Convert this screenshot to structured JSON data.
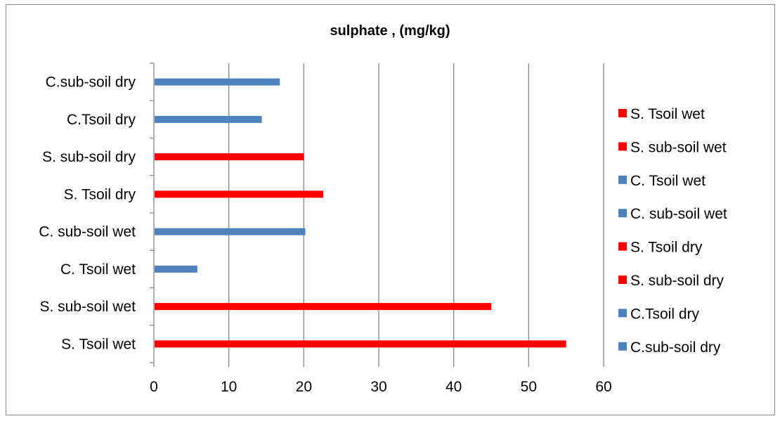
{
  "chart_data": {
    "type": "bar",
    "orientation": "horizontal",
    "title": "sulphate , (mg/kg)",
    "xlabel": "",
    "ylabel": "",
    "xlim": [
      0,
      60
    ],
    "x_ticks": [
      0,
      10,
      20,
      30,
      40,
      50,
      60
    ],
    "grid": "vertical major gridlines",
    "legend_position": "right",
    "categories": [
      "S. Tsoil wet",
      "S. sub-soil wet",
      "C. Tsoil wet",
      "C. sub-soil wet",
      "S. Tsoil dry",
      "S. sub-soil dry",
      "C.Tsoil dry",
      "C.sub-soil dry"
    ],
    "values": [
      55,
      45,
      5.8,
      20.2,
      22.6,
      20,
      14.4,
      16.8
    ],
    "bar_colors": [
      "#ff0000",
      "#ff0000",
      "#4f81bd",
      "#4f81bd",
      "#ff0000",
      "#ff0000",
      "#4f81bd",
      "#4f81bd"
    ],
    "legend": [
      {
        "label": "S. Tsoil wet",
        "color": "#ff0000"
      },
      {
        "label": "S. sub-soil wet",
        "color": "#ff0000"
      },
      {
        "label": "C. Tsoil wet",
        "color": "#4f81bd"
      },
      {
        "label": "C. sub-soil wet",
        "color": "#4f81bd"
      },
      {
        "label": "S. Tsoil dry",
        "color": "#ff0000"
      },
      {
        "label": "S. sub-soil dry",
        "color": "#ff0000"
      },
      {
        "label": "C.Tsoil dry",
        "color": "#4f81bd"
      },
      {
        "label": "C.sub-soil dry",
        "color": "#4f81bd"
      }
    ]
  }
}
